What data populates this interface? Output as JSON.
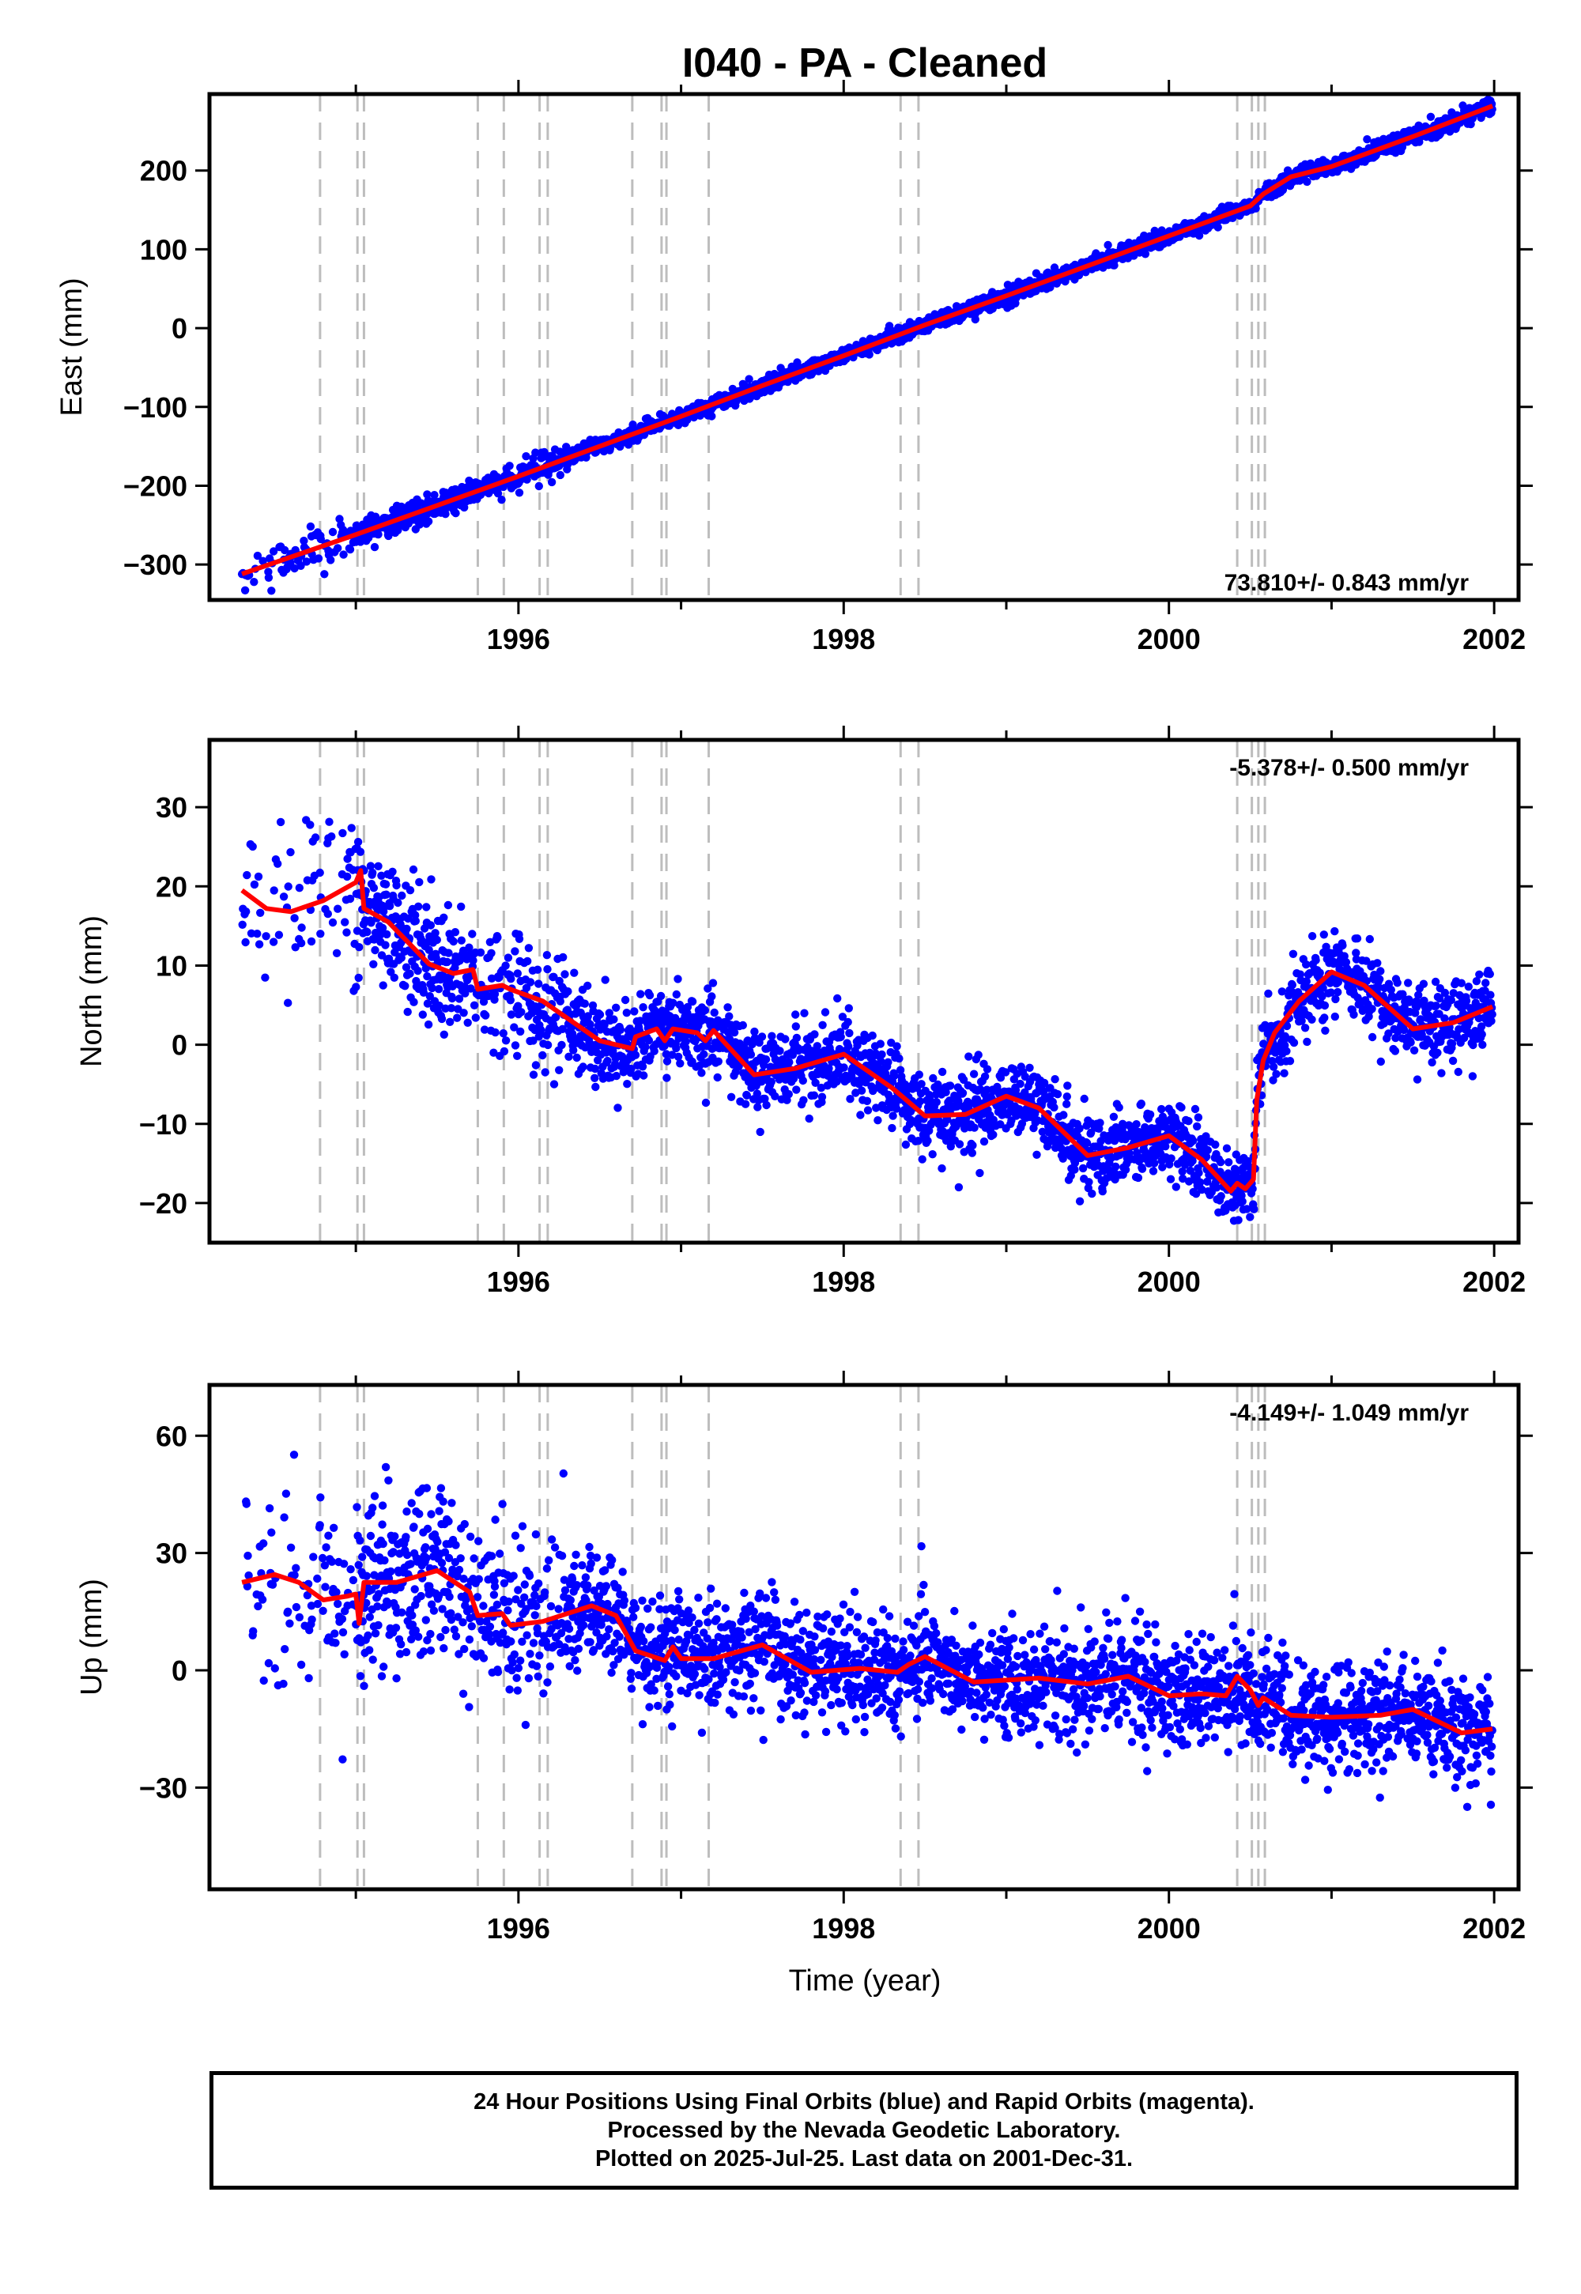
{
  "title": "I040  - PA - Cleaned",
  "x_axis_label": "Time (year)",
  "footer": {
    "line1": "24 Hour Positions Using Final Orbits (blue) and Rapid Orbits (magenta).",
    "line2": "Processed by the Nevada Geodetic Laboratory.",
    "line3": "Plotted on 2025-Jul-25. Last data on 2001-Dec-31."
  },
  "colors": {
    "points": "#0000ff",
    "model": "#ff0000",
    "steps": "#bdbdbd",
    "frame": "#000000"
  },
  "chart_data": [
    {
      "type": "scatter",
      "component": "East",
      "ylabel": "East (mm)",
      "xlim": [
        1994.1,
        2002.15
      ],
      "ylim": [
        -345,
        297
      ],
      "xticks": [
        1996,
        1998,
        2000,
        2002
      ],
      "yticks": [
        -300,
        -200,
        -100,
        0,
        100,
        200
      ],
      "rate_text": "73.810+/- 0.843 mm/yr",
      "rate_position": "bottom-right",
      "data_start": 1994.3,
      "data_end": 2001.99,
      "model_line": [
        [
          1994.3,
          -312
        ],
        [
          1995.0,
          -262
        ],
        [
          1995.5,
          -225
        ],
        [
          1996.0,
          -188
        ],
        [
          1996.5,
          -150
        ],
        [
          1997.0,
          -112
        ],
        [
          1997.5,
          -73
        ],
        [
          1998.0,
          -35
        ],
        [
          1998.5,
          4
        ],
        [
          1999.0,
          41
        ],
        [
          1999.5,
          79
        ],
        [
          2000.0,
          117
        ],
        [
          2000.5,
          155
        ],
        [
          2000.58,
          170
        ],
        [
          2000.75,
          192
        ],
        [
          2001.0,
          205
        ],
        [
          2001.5,
          243
        ],
        [
          2001.99,
          282
        ]
      ],
      "scatter_sigma": 5
    },
    {
      "type": "scatter",
      "component": "North",
      "ylabel": "North (mm)",
      "xlim": [
        1994.1,
        2002.15
      ],
      "ylim": [
        -25,
        38.5
      ],
      "xticks": [
        1996,
        1998,
        2000,
        2002
      ],
      "yticks": [
        -20,
        -10,
        0,
        10,
        20,
        30
      ],
      "rate_text": "-5.378+/- 0.500 mm/yr",
      "rate_position": "top-right",
      "data_start": 1994.3,
      "data_end": 2001.99,
      "model_line": [
        [
          1994.3,
          19.5
        ],
        [
          1994.45,
          17.2
        ],
        [
          1994.6,
          16.8
        ],
        [
          1994.8,
          18.2
        ],
        [
          1995.0,
          20.5
        ],
        [
          1995.03,
          22
        ],
        [
          1995.05,
          17.2
        ],
        [
          1995.2,
          15.5
        ],
        [
          1995.45,
          10.2
        ],
        [
          1995.6,
          9.0
        ],
        [
          1995.72,
          9.5
        ],
        [
          1995.75,
          7.0
        ],
        [
          1995.9,
          7.5
        ],
        [
          1995.95,
          7.0
        ],
        [
          1996.15,
          5.5
        ],
        [
          1996.5,
          0.5
        ],
        [
          1996.7,
          -0.5
        ],
        [
          1996.72,
          1.0
        ],
        [
          1996.85,
          2.0
        ],
        [
          1996.9,
          0.5
        ],
        [
          1996.95,
          2.0
        ],
        [
          1997.1,
          1.5
        ],
        [
          1997.15,
          0.5
        ],
        [
          1997.2,
          1.8
        ],
        [
          1997.45,
          -3.8
        ],
        [
          1997.7,
          -3.0
        ],
        [
          1998.0,
          -1.2
        ],
        [
          1998.3,
          -5.5
        ],
        [
          1998.5,
          -9.0
        ],
        [
          1998.75,
          -8.8
        ],
        [
          1999.0,
          -6.5
        ],
        [
          1999.2,
          -8.0
        ],
        [
          1999.5,
          -14.0
        ],
        [
          1999.75,
          -13.0
        ],
        [
          2000.0,
          -11.5
        ],
        [
          2000.2,
          -14.5
        ],
        [
          2000.38,
          -18.5
        ],
        [
          2000.42,
          -17.5
        ],
        [
          2000.47,
          -18.2
        ],
        [
          2000.52,
          -17.0
        ],
        [
          2000.54,
          -7.0
        ],
        [
          2000.58,
          -2.0
        ],
        [
          2000.65,
          1.5
        ],
        [
          2000.8,
          5.5
        ],
        [
          2001.0,
          9.2
        ],
        [
          2001.2,
          7.5
        ],
        [
          2001.5,
          2.0
        ],
        [
          2001.75,
          2.8
        ],
        [
          2001.99,
          4.8
        ]
      ],
      "scatter_sigma": 2.5
    },
    {
      "type": "scatter",
      "component": "Up",
      "ylabel": "Up (mm)",
      "xlim": [
        1994.1,
        2002.15
      ],
      "ylim": [
        -56,
        73
      ],
      "xticks": [
        1996,
        1998,
        2000,
        2002
      ],
      "yticks": [
        -30,
        0,
        30,
        60
      ],
      "rate_text": "-4.149+/- 1.049 mm/yr",
      "rate_position": "top-right",
      "data_start": 1994.3,
      "data_end": 2001.99,
      "model_line": [
        [
          1994.3,
          22.5
        ],
        [
          1994.5,
          24.5
        ],
        [
          1994.65,
          22.5
        ],
        [
          1994.8,
          18.0
        ],
        [
          1994.95,
          19.0
        ],
        [
          1995.0,
          19.5
        ],
        [
          1995.02,
          12
        ],
        [
          1995.05,
          22.5
        ],
        [
          1995.25,
          22.5
        ],
        [
          1995.5,
          25.5
        ],
        [
          1995.7,
          20.0
        ],
        [
          1995.75,
          14.0
        ],
        [
          1995.9,
          14.5
        ],
        [
          1995.95,
          11.5
        ],
        [
          1996.15,
          12.5
        ],
        [
          1996.45,
          16.5
        ],
        [
          1996.6,
          14.0
        ],
        [
          1996.72,
          5.0
        ],
        [
          1996.9,
          2.5
        ],
        [
          1996.95,
          6.0
        ],
        [
          1997.0,
          3.0
        ],
        [
          1997.2,
          3.0
        ],
        [
          1997.5,
          6.5
        ],
        [
          1997.8,
          -0.5
        ],
        [
          1998.1,
          0.5
        ],
        [
          1998.33,
          -0.5
        ],
        [
          1998.4,
          1.5
        ],
        [
          1998.5,
          3.5
        ],
        [
          1998.8,
          -3.0
        ],
        [
          1999.2,
          -2.0
        ],
        [
          1999.5,
          -3.5
        ],
        [
          1999.75,
          -1.5
        ],
        [
          2000.0,
          -6.5
        ],
        [
          2000.2,
          -6.0
        ],
        [
          2000.35,
          -6.5
        ],
        [
          2000.42,
          -1.5
        ],
        [
          2000.5,
          -5.0
        ],
        [
          2000.55,
          -9.0
        ],
        [
          2000.58,
          -7.0
        ],
        [
          2000.75,
          -11.5
        ],
        [
          2001.0,
          -12.0
        ],
        [
          2001.3,
          -11.5
        ],
        [
          2001.5,
          -10.0
        ],
        [
          2001.8,
          -16.0
        ],
        [
          2001.99,
          -15.0
        ]
      ],
      "scatter_sigma": 7
    }
  ],
  "step_epochs": [
    1994.78,
    1995.01,
    1995.05,
    1995.75,
    1995.91,
    1996.13,
    1996.18,
    1996.7,
    1996.88,
    1996.91,
    1997.17,
    1998.35,
    1998.46,
    2000.42,
    2000.51,
    2000.55,
    2000.59
  ]
}
